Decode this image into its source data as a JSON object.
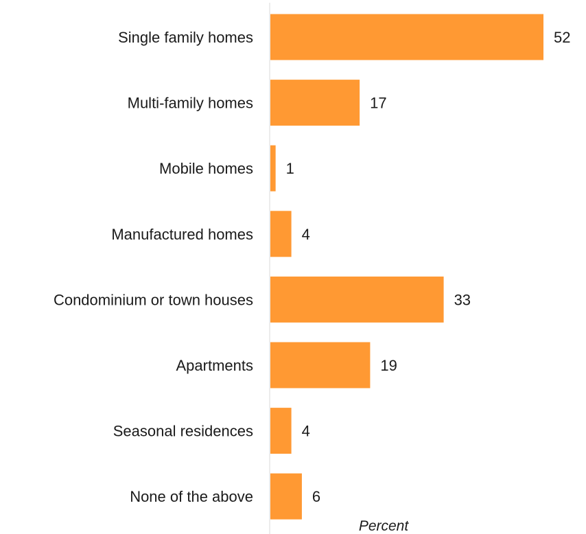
{
  "chart_data": {
    "type": "bar",
    "orientation": "horizontal",
    "categories": [
      "Single family homes",
      "Multi-family homes",
      "Mobile homes",
      "Manufactured homes",
      "Condominium or town houses",
      "Apartments",
      "Seasonal residences",
      "None of the above"
    ],
    "values": [
      52,
      17,
      1,
      4,
      33,
      19,
      4,
      6
    ],
    "data_labels": [
      "52",
      "17",
      "1",
      "4",
      "33",
      "19",
      "4",
      "6"
    ],
    "xlabel": "Percent",
    "xlim": [
      0,
      52
    ],
    "grid": false,
    "legend": "none",
    "colors": {
      "bar": "#FF9933",
      "axis": "#d9d9d9",
      "text": "#1a1a1a"
    }
  }
}
